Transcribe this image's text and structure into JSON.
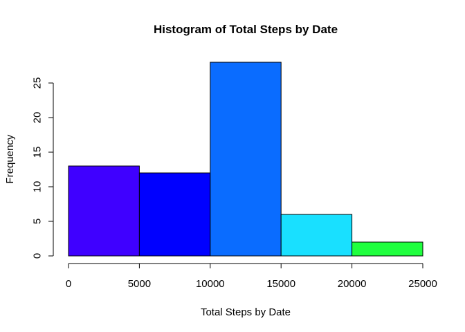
{
  "chart_data": {
    "type": "bar",
    "subtype": "histogram",
    "title": "Histogram of Total Steps by Date",
    "xlabel": "Total Steps by Date",
    "ylabel": "Frequency",
    "bins": [
      {
        "start": 0,
        "end": 5000,
        "count": 13,
        "color": "#3F00FF"
      },
      {
        "start": 5000,
        "end": 10000,
        "count": 12,
        "color": "#0000FF"
      },
      {
        "start": 10000,
        "end": 15000,
        "count": 28,
        "color": "#0A6CFF"
      },
      {
        "start": 15000,
        "end": 20000,
        "count": 6,
        "color": "#19E0FF"
      },
      {
        "start": 20000,
        "end": 25000,
        "count": 2,
        "color": "#20FF3F"
      }
    ],
    "xlim": [
      0,
      25000
    ],
    "ylim": [
      0,
      28
    ],
    "xticks": [
      0,
      5000,
      10000,
      15000,
      20000,
      25000
    ],
    "yticks": [
      0,
      5,
      10,
      15,
      20,
      25
    ],
    "grid": false,
    "legend": "none"
  }
}
